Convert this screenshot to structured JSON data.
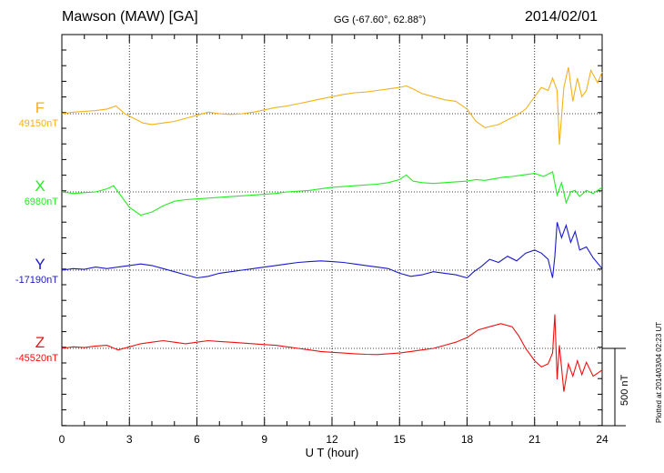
{
  "header": {
    "station": "Mawson (MAW)  [GA]",
    "coords": "GG (-67.60°,  62.88°)",
    "date": "2014/02/01"
  },
  "plotted_note": "Plotted at 2014/03/04 02:23 UT",
  "chart_data": {
    "type": "line",
    "xlabel": "U T (hour)",
    "xlim": [
      0,
      24
    ],
    "x_ticks": [
      "0",
      "3",
      "6",
      "9",
      "12",
      "15",
      "18",
      "21",
      "24"
    ],
    "grid": true,
    "scale_bar_label": "500 nT",
    "series": [
      {
        "name": "F",
        "baseline_label": "49150nT",
        "color": "#f2b21b",
        "baseline": 49150,
        "x": [
          0,
          0.5,
          1,
          1.5,
          2,
          2.4,
          2.8,
          3.2,
          3.6,
          4,
          4.5,
          5,
          5.5,
          6,
          6.5,
          7,
          7.5,
          8,
          8.5,
          9,
          9.5,
          10,
          10.5,
          11,
          11.5,
          12,
          12.5,
          13,
          13.5,
          14,
          14.5,
          15,
          15.3,
          15.6,
          16,
          16.5,
          17,
          17.5,
          18,
          18.4,
          18.8,
          19.1,
          19.4,
          19.8,
          20.2,
          20.6,
          21,
          21.3,
          21.6,
          21.8,
          22,
          22.1,
          22.3,
          22.5,
          22.7,
          22.9,
          23.1,
          23.3,
          23.5,
          23.8,
          24
        ],
        "y": [
          49150,
          49160,
          49165,
          49170,
          49180,
          49200,
          49150,
          49120,
          49090,
          49080,
          49090,
          49100,
          49120,
          49140,
          49160,
          49150,
          49145,
          49150,
          49160,
          49175,
          49190,
          49200,
          49215,
          49230,
          49245,
          49260,
          49275,
          49285,
          49290,
          49300,
          49310,
          49320,
          49330,
          49310,
          49280,
          49260,
          49240,
          49230,
          49180,
          49100,
          49060,
          49070,
          49080,
          49110,
          49140,
          49180,
          49260,
          49320,
          49300,
          49380,
          49300,
          48950,
          49320,
          49450,
          49230,
          49380,
          49260,
          49300,
          49430,
          49350,
          49420
        ]
      },
      {
        "name": "X",
        "baseline_label": "6980nT",
        "color": "#22ee22",
        "baseline": 6980,
        "x": [
          0,
          0.5,
          1,
          1.5,
          2,
          2.3,
          2.6,
          3,
          3.5,
          4,
          4.5,
          5,
          5.5,
          6,
          6.5,
          7,
          7.5,
          8,
          8.5,
          9,
          9.5,
          10,
          10.5,
          11,
          11.5,
          12,
          12.5,
          13,
          13.5,
          14,
          14.5,
          15,
          15.3,
          15.6,
          16,
          16.5,
          17,
          17.5,
          18,
          18.4,
          18.8,
          19.2,
          19.6,
          20,
          20.5,
          21,
          21.4,
          21.8,
          22,
          22.2,
          22.4,
          22.6,
          22.8,
          23,
          23.3,
          23.6,
          24
        ],
        "y": [
          6980,
          6970,
          6975,
          6980,
          7000,
          7020,
          6960,
          6880,
          6830,
          6850,
          6890,
          6920,
          6930,
          6935,
          6940,
          6945,
          6950,
          6955,
          6960,
          6965,
          6970,
          6980,
          6985,
          6990,
          7000,
          7010,
          7015,
          7020,
          7025,
          7030,
          7040,
          7060,
          7090,
          7050,
          7040,
          7035,
          7040,
          7045,
          7050,
          7060,
          7055,
          7065,
          7075,
          7080,
          7090,
          7100,
          7080,
          7110,
          6960,
          7040,
          6910,
          6980,
          6990,
          6950,
          6990,
          6970,
          7010
        ]
      },
      {
        "name": "Y",
        "baseline_label": "-17190nT",
        "color": "#1a1acc",
        "baseline": -17190,
        "x": [
          0,
          0.5,
          1,
          1.5,
          2,
          2.5,
          3,
          3.5,
          4,
          4.5,
          5,
          5.5,
          6,
          6.5,
          7,
          7.5,
          8,
          8.5,
          9,
          9.5,
          10,
          10.5,
          11,
          11.5,
          12,
          12.5,
          13,
          13.5,
          14,
          14.5,
          15,
          15.5,
          16,
          16.5,
          17,
          17.5,
          18,
          18.3,
          18.6,
          19,
          19.4,
          19.8,
          20.2,
          20.6,
          21,
          21.3,
          21.6,
          21.8,
          21.9,
          22,
          22.2,
          22.4,
          22.6,
          22.8,
          23,
          23.3,
          23.6,
          24
        ],
        "y": [
          -17190,
          -17180,
          -17185,
          -17170,
          -17180,
          -17170,
          -17160,
          -17150,
          -17160,
          -17180,
          -17200,
          -17220,
          -17240,
          -17230,
          -17210,
          -17200,
          -17190,
          -17180,
          -17170,
          -17160,
          -17150,
          -17140,
          -17135,
          -17130,
          -17135,
          -17140,
          -17150,
          -17160,
          -17170,
          -17180,
          -17210,
          -17230,
          -17220,
          -17200,
          -17210,
          -17220,
          -17240,
          -17200,
          -17170,
          -17120,
          -17140,
          -17100,
          -17130,
          -17080,
          -17060,
          -17080,
          -17120,
          -17240,
          -17100,
          -16880,
          -16980,
          -16900,
          -17010,
          -16940,
          -17060,
          -17040,
          -17110,
          -17180
        ]
      },
      {
        "name": "Z",
        "baseline_label": "-45520nT",
        "color": "#ee1111",
        "baseline": -45520,
        "x": [
          0,
          0.5,
          1,
          1.5,
          2,
          2.5,
          3,
          3.5,
          4,
          4.5,
          5,
          5.5,
          6,
          6.5,
          7,
          7.5,
          8,
          8.5,
          9,
          9.5,
          10,
          10.5,
          11,
          11.5,
          12,
          12.5,
          13,
          13.5,
          14,
          14.5,
          15,
          15.5,
          16,
          16.5,
          17,
          17.5,
          18,
          18.5,
          19,
          19.5,
          20,
          20.3,
          20.6,
          21,
          21.3,
          21.6,
          21.8,
          21.9,
          22,
          22.1,
          22.3,
          22.5,
          22.7,
          22.9,
          23.1,
          23.3,
          23.6,
          24
        ],
        "y": [
          -45520,
          -45510,
          -45515,
          -45505,
          -45500,
          -45530,
          -45510,
          -45490,
          -45480,
          -45470,
          -45480,
          -45490,
          -45480,
          -45470,
          -45475,
          -45480,
          -45485,
          -45490,
          -45495,
          -45500,
          -45510,
          -45520,
          -45530,
          -45540,
          -45545,
          -45550,
          -45555,
          -45558,
          -45560,
          -45555,
          -45550,
          -45540,
          -45530,
          -45520,
          -45500,
          -45480,
          -45450,
          -45400,
          -45380,
          -45360,
          -45380,
          -45440,
          -45520,
          -45600,
          -45640,
          -45620,
          -45550,
          -45300,
          -45720,
          -45500,
          -45800,
          -45620,
          -45700,
          -45600,
          -45690,
          -45610,
          -45700,
          -45660
        ]
      }
    ]
  }
}
